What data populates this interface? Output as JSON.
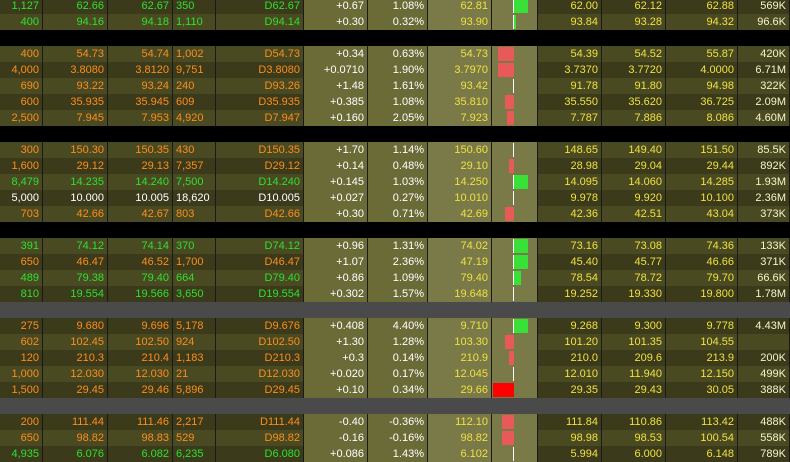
{
  "colors": {
    "row_dark": "#3b3b1c",
    "row_mid": "#4a4a22",
    "change_bg": "#6b6b38",
    "ask_bg": "#7a7a48",
    "text_yellow": "#f0e040",
    "text_orange": "#ff8c1a",
    "text_green": "#2ee02e",
    "text_white": "#ffffff",
    "text_cream": "#f5f5c8",
    "bar_positive": "#38e038",
    "bar_negative": "#e85a5a",
    "bar_strong_negative": "#ff0000"
  },
  "quote_rows": [
    {
      "qty": "1,127",
      "bid": "62.66",
      "ask": "62.67",
      "size": "350",
      "last": "D62.67",
      "change": "+0.67",
      "pct": "1.08%",
      "price": "62.81",
      "bar_dir": "up",
      "bar_level": 0.3,
      "open": "62.00",
      "low": "62.12",
      "high": "62.88",
      "vol": "569K",
      "tint": "green"
    },
    {
      "qty": "400",
      "bid": "94.16",
      "ask": "94.18",
      "size": "1,110",
      "last": "D94.14",
      "change": "+0.30",
      "pct": "0.32%",
      "price": "93.90",
      "bar_dir": "up",
      "bar_level": 0.05,
      "open": "93.84",
      "low": "93.28",
      "high": "94.32",
      "vol": "96.6K",
      "tint": "green"
    },
    {
      "sep": true
    },
    {
      "qty": "400",
      "bid": "54.73",
      "ask": "54.74",
      "size": "1,002",
      "last": "D54.73",
      "change": "+0.34",
      "pct": "0.63%",
      "price": "54.73",
      "bar_dir": "down",
      "bar_level": 0.35,
      "open": "54.39",
      "low": "54.52",
      "high": "55.87",
      "vol": "420K",
      "tint": "orange"
    },
    {
      "qty": "4,000",
      "bid": "3.8080",
      "ask": "3.8120",
      "size": "9,751",
      "last": "D3.8080",
      "change": "+0.0710",
      "pct": "1.90%",
      "price": "3.7970",
      "bar_dir": "down",
      "bar_level": 0.35,
      "open": "3.7370",
      "low": "3.7720",
      "high": "4.0000",
      "vol": "6.71M",
      "tint": "orange"
    },
    {
      "qty": "690",
      "bid": "93.22",
      "ask": "93.24",
      "size": "240",
      "last": "D93.26",
      "change": "+1.48",
      "pct": "1.61%",
      "price": "93.42",
      "bar_dir": "none",
      "bar_level": 0,
      "open": "91.78",
      "low": "91.80",
      "high": "94.98",
      "vol": "322K",
      "tint": "orange"
    },
    {
      "qty": "600",
      "bid": "35.935",
      "ask": "35.945",
      "size": "609",
      "last": "D35.935",
      "change": "+0.385",
      "pct": "1.08%",
      "price": "35.810",
      "bar_dir": "down",
      "bar_level": 0.2,
      "open": "35.550",
      "low": "35.620",
      "high": "36.725",
      "vol": "2.09M",
      "tint": "orange"
    },
    {
      "qty": "2,500",
      "bid": "7.945",
      "ask": "7.953",
      "size": "4,920",
      "last": "D7.947",
      "change": "+0.160",
      "pct": "2.05%",
      "price": "7.923",
      "bar_dir": "down",
      "bar_level": 0.15,
      "open": "7.787",
      "low": "7.886",
      "high": "8.086",
      "vol": "4.60M",
      "tint": "orange"
    },
    {
      "sep": true
    },
    {
      "qty": "300",
      "bid": "150.30",
      "ask": "150.35",
      "size": "430",
      "last": "D150.35",
      "change": "+1.70",
      "pct": "1.14%",
      "price": "150.60",
      "bar_dir": "none",
      "bar_level": 0,
      "open": "148.65",
      "low": "149.40",
      "high": "151.50",
      "vol": "85.5K",
      "tint": "orange"
    },
    {
      "qty": "1,600",
      "bid": "29.12",
      "ask": "29.13",
      "size": "7,357",
      "last": "D29.12",
      "change": "+0.14",
      "pct": "0.48%",
      "price": "29.10",
      "bar_dir": "down",
      "bar_level": 0.1,
      "open": "28.98",
      "low": "29.04",
      "high": "29.44",
      "vol": "892K",
      "tint": "orange"
    },
    {
      "qty": "8,479",
      "bid": "14.235",
      "ask": "14.240",
      "size": "7,500",
      "last": "D14.240",
      "change": "+0.145",
      "pct": "1.03%",
      "price": "14.250",
      "bar_dir": "up",
      "bar_level": 0.3,
      "open": "14.095",
      "low": "14.060",
      "high": "14.285",
      "vol": "1.93M",
      "tint": "green"
    },
    {
      "qty": "5,000",
      "bid": "10.000",
      "ask": "10.005",
      "size": "18,620",
      "last": "D10.005",
      "change": "+0.027",
      "pct": "0.27%",
      "price": "10.010",
      "bar_dir": "none",
      "bar_level": 0,
      "open": "9.978",
      "low": "9.920",
      "high": "10.100",
      "vol": "2.36M",
      "tint": "white"
    },
    {
      "qty": "703",
      "bid": "42.66",
      "ask": "42.67",
      "size": "803",
      "last": "D42.66",
      "change": "+0.30",
      "pct": "0.71%",
      "price": "42.69",
      "bar_dir": "down",
      "bar_level": 0.2,
      "open": "42.36",
      "low": "42.51",
      "high": "43.04",
      "vol": "373K",
      "tint": "orange"
    },
    {
      "sep": true
    },
    {
      "qty": "391",
      "bid": "74.12",
      "ask": "74.14",
      "size": "370",
      "last": "D74.12",
      "change": "+0.96",
      "pct": "1.31%",
      "price": "74.02",
      "bar_dir": "up",
      "bar_level": 0.3,
      "open": "73.16",
      "low": "73.08",
      "high": "74.36",
      "vol": "133K",
      "tint": "green"
    },
    {
      "qty": "650",
      "bid": "46.47",
      "ask": "46.52",
      "size": "1,700",
      "last": "D46.47",
      "change": "+1.07",
      "pct": "2.36%",
      "price": "47.19",
      "bar_dir": "up",
      "bar_level": 0.3,
      "open": "45.40",
      "low": "45.77",
      "high": "46.66",
      "vol": "371K",
      "tint": "orange"
    },
    {
      "qty": "489",
      "bid": "79.38",
      "ask": "79.40",
      "size": "664",
      "last": "D79.40",
      "change": "+0.86",
      "pct": "1.09%",
      "price": "79.40",
      "bar_dir": "up",
      "bar_level": 0.15,
      "open": "78.54",
      "low": "78.72",
      "high": "79.70",
      "vol": "66.6K",
      "tint": "green"
    },
    {
      "qty": "810",
      "bid": "19.554",
      "ask": "19.566",
      "size": "3,650",
      "last": "D19.554",
      "change": "+0.302",
      "pct": "1.57%",
      "price": "19.648",
      "bar_dir": "none",
      "bar_level": 0,
      "open": "19.252",
      "low": "19.330",
      "high": "19.800",
      "vol": "1.78M",
      "tint": "green"
    },
    {
      "sep": true,
      "grey": true
    },
    {
      "qty": "275",
      "bid": "9.680",
      "ask": "9.696",
      "size": "5,178",
      "last": "D9.676",
      "change": "+0.408",
      "pct": "4.40%",
      "price": "9.710",
      "bar_dir": "up",
      "bar_level": 0.3,
      "open": "9.268",
      "low": "9.300",
      "high": "9.778",
      "vol": "4.43M",
      "tint": "orange"
    },
    {
      "qty": "602",
      "bid": "102.45",
      "ask": "102.50",
      "size": "924",
      "last": "D102.50",
      "change": "+1.30",
      "pct": "1.28%",
      "price": "103.30",
      "bar_dir": "down",
      "bar_level": 0.2,
      "open": "101.20",
      "low": "101.35",
      "high": "104.55",
      "vol": "",
      "tint": "orange"
    },
    {
      "qty": "120",
      "bid": "210.3",
      "ask": "210.4",
      "size": "1,183",
      "last": "D210.3",
      "change": "+0.3",
      "pct": "0.14%",
      "price": "210.9",
      "bar_dir": "down",
      "bar_level": 0.1,
      "open": "210.0",
      "low": "209.6",
      "high": "213.9",
      "vol": "200K",
      "tint": "orange"
    },
    {
      "qty": "1,000",
      "bid": "12.030",
      "ask": "12.030",
      "size": "21",
      "last": "D12.030",
      "change": "+0.020",
      "pct": "0.17%",
      "price": "12.045",
      "bar_dir": "none",
      "bar_level": 0,
      "open": "12.010",
      "low": "11.940",
      "high": "12.150",
      "vol": "499K",
      "tint": "orange"
    },
    {
      "qty": "1,500",
      "bid": "29.45",
      "ask": "29.46",
      "size": "5,896",
      "last": "D29.45",
      "change": "+0.10",
      "pct": "0.34%",
      "price": "29.66",
      "bar_dir": "strongdown",
      "bar_level": 0.45,
      "open": "29.35",
      "low": "29.43",
      "high": "30.05",
      "vol": "388K",
      "tint": "orange"
    },
    {
      "sep": true,
      "grey": true
    },
    {
      "qty": "200",
      "bid": "111.44",
      "ask": "111.46",
      "size": "2,217",
      "last": "D111.44",
      "change": "-0.40",
      "pct": "-0.36%",
      "price": "112.10",
      "bar_dir": "down",
      "bar_level": 0.25,
      "open": "111.84",
      "low": "110.86",
      "high": "113.42",
      "vol": "488K",
      "tint": "orange"
    },
    {
      "qty": "650",
      "bid": "98.82",
      "ask": "98.83",
      "size": "529",
      "last": "D98.82",
      "change": "-0.16",
      "pct": "-0.16%",
      "price": "98.82",
      "bar_dir": "down",
      "bar_level": 0.25,
      "open": "98.98",
      "low": "98.53",
      "high": "100.54",
      "vol": "558K",
      "tint": "orange"
    },
    {
      "qty": "4,935",
      "bid": "6.076",
      "ask": "6.082",
      "size": "6,235",
      "last": "D6.080",
      "change": "+0.086",
      "pct": "1.43%",
      "price": "6.102",
      "bar_dir": "none",
      "bar_level": 0,
      "open": "5.994",
      "low": "6.000",
      "high": "6.148",
      "vol": "789K",
      "tint": "green"
    }
  ]
}
